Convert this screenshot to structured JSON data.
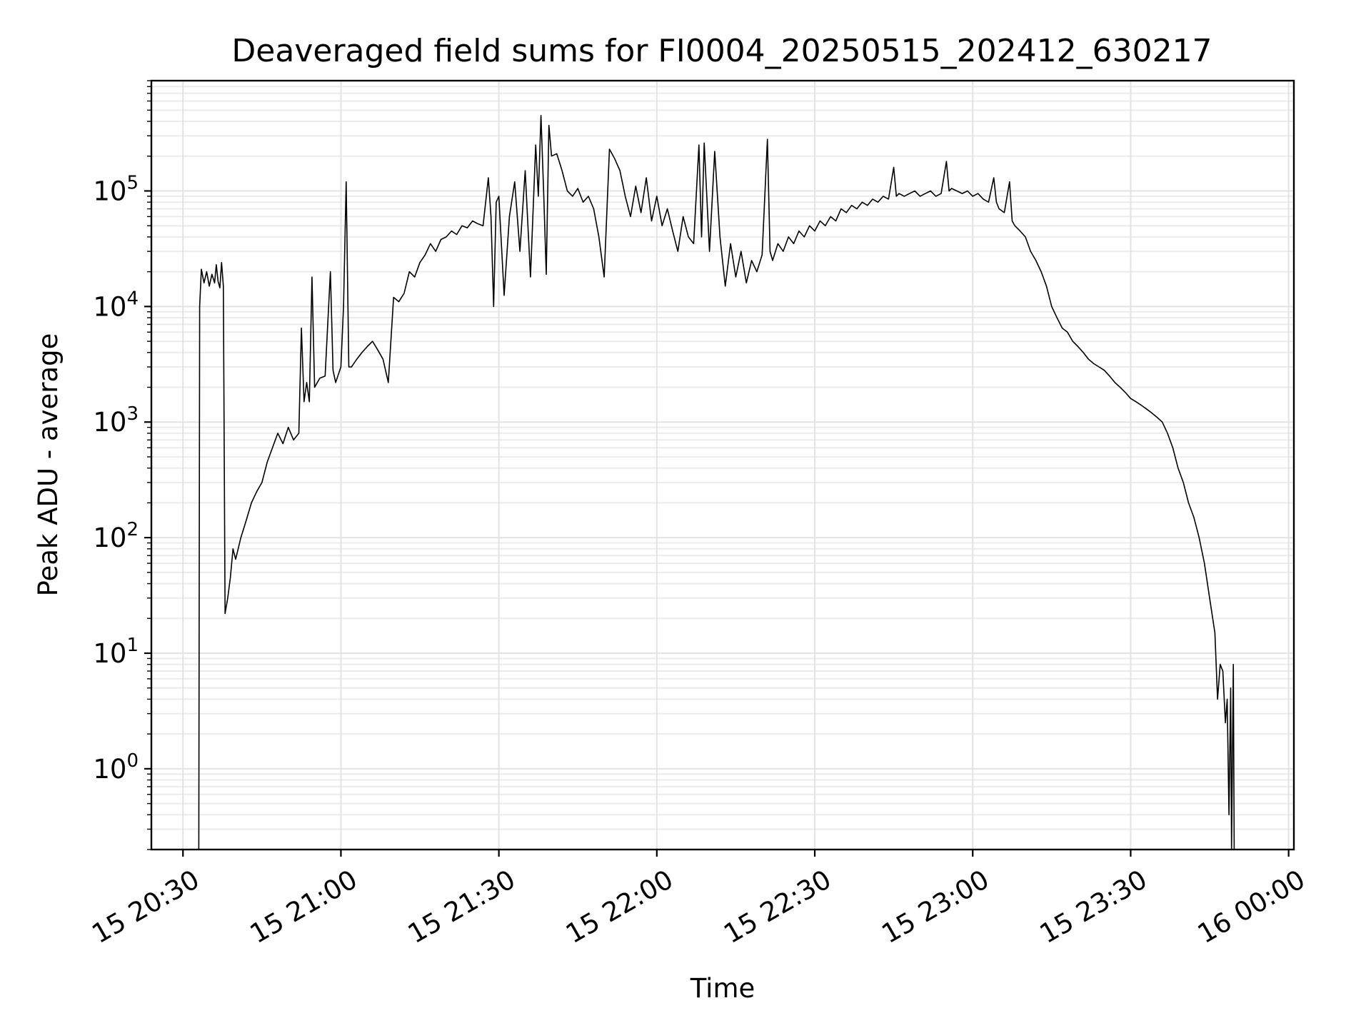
{
  "chart_data": {
    "type": "line",
    "title": "Deaveraged field sums for FI0004_20250515_202412_630217",
    "xlabel": "Time",
    "ylabel": "Peak ADU - average",
    "yscale": "log",
    "ylim": [
      0.2,
      900000
    ],
    "xlim": [
      "2025-05-15 20:24",
      "2025-05-16 00:01"
    ],
    "grid": "both",
    "x_ticks": [
      {
        "t": "2025-05-15 20:30",
        "label": "15 20:30"
      },
      {
        "t": "2025-05-15 21:00",
        "label": "15 21:00"
      },
      {
        "t": "2025-05-15 21:30",
        "label": "15 21:30"
      },
      {
        "t": "2025-05-15 22:00",
        "label": "15 22:00"
      },
      {
        "t": "2025-05-15 22:30",
        "label": "15 22:30"
      },
      {
        "t": "2025-05-15 23:00",
        "label": "15 23:00"
      },
      {
        "t": "2025-05-15 23:30",
        "label": "15 23:30"
      },
      {
        "t": "2025-05-16 00:00",
        "label": "16 00:00"
      }
    ],
    "y_ticks": [
      {
        "value": 1,
        "base": "10",
        "exp": "0"
      },
      {
        "value": 10,
        "base": "10",
        "exp": "1"
      },
      {
        "value": 100,
        "base": "10",
        "exp": "2"
      },
      {
        "value": 1000,
        "base": "10",
        "exp": "3"
      },
      {
        "value": 10000,
        "base": "10",
        "exp": "4"
      },
      {
        "value": 100000,
        "base": "10",
        "exp": "5"
      }
    ],
    "series": [
      {
        "color": "#000000",
        "points": [
          [
            "2025-05-15 20:33",
            0.1
          ],
          [
            "2025-05-15 20:33:10",
            10000
          ],
          [
            "2025-05-15 20:33:30",
            21000
          ],
          [
            "2025-05-15 20:34",
            16000
          ],
          [
            "2025-05-15 20:34:30",
            20000
          ],
          [
            "2025-05-15 20:35",
            15000
          ],
          [
            "2025-05-15 20:35:30",
            19000
          ],
          [
            "2025-05-15 20:36",
            16000
          ],
          [
            "2025-05-15 20:36:20",
            23000
          ],
          [
            "2025-05-15 20:36:40",
            16500
          ],
          [
            "2025-05-15 20:37",
            14500
          ],
          [
            "2025-05-15 20:37:20",
            24000
          ],
          [
            "2025-05-15 20:37:40",
            15000
          ],
          [
            "2025-05-15 20:38",
            22
          ],
          [
            "2025-05-15 20:38:30",
            30
          ],
          [
            "2025-05-15 20:39",
            45
          ],
          [
            "2025-05-15 20:39:30",
            80
          ],
          [
            "2025-05-15 20:40",
            65
          ],
          [
            "2025-05-15 20:41",
            100
          ],
          [
            "2025-05-15 20:42",
            140
          ],
          [
            "2025-05-15 20:43",
            200
          ],
          [
            "2025-05-15 20:44",
            250
          ],
          [
            "2025-05-15 20:45",
            300
          ],
          [
            "2025-05-15 20:46",
            450
          ],
          [
            "2025-05-15 20:47",
            600
          ],
          [
            "2025-05-15 20:48",
            800
          ],
          [
            "2025-05-15 20:49",
            650
          ],
          [
            "2025-05-15 20:50",
            900
          ],
          [
            "2025-05-15 20:51",
            700
          ],
          [
            "2025-05-15 20:52",
            800
          ],
          [
            "2025-05-15 20:52:30",
            6500
          ],
          [
            "2025-05-15 20:53",
            1500
          ],
          [
            "2025-05-15 20:53:30",
            2200
          ],
          [
            "2025-05-15 20:54",
            1500
          ],
          [
            "2025-05-15 20:54:30",
            18000
          ],
          [
            "2025-05-15 20:55",
            2000
          ],
          [
            "2025-05-15 20:56",
            2400
          ],
          [
            "2025-05-15 20:57",
            2500
          ],
          [
            "2025-05-15 20:58",
            20000
          ],
          [
            "2025-05-15 20:58:30",
            2800
          ],
          [
            "2025-05-15 20:59",
            2200
          ],
          [
            "2025-05-15 21:00",
            3000
          ],
          [
            "2025-05-15 21:00:30",
            10000
          ],
          [
            "2025-05-15 21:01",
            120000
          ],
          [
            "2025-05-15 21:01:30",
            3000
          ],
          [
            "2025-05-15 21:02",
            3000
          ],
          [
            "2025-05-15 21:03",
            3500
          ],
          [
            "2025-05-15 21:04",
            4000
          ],
          [
            "2025-05-15 21:05",
            4500
          ],
          [
            "2025-05-15 21:06",
            5000
          ],
          [
            "2025-05-15 21:07",
            4200
          ],
          [
            "2025-05-15 21:08",
            3500
          ],
          [
            "2025-05-15 21:09",
            2200
          ],
          [
            "2025-05-15 21:10",
            12000
          ],
          [
            "2025-05-15 21:11",
            11000
          ],
          [
            "2025-05-15 21:12",
            13000
          ],
          [
            "2025-05-15 21:13",
            20000
          ],
          [
            "2025-05-15 21:14",
            18000
          ],
          [
            "2025-05-15 21:15",
            24000
          ],
          [
            "2025-05-15 21:16",
            28000
          ],
          [
            "2025-05-15 21:17",
            35000
          ],
          [
            "2025-05-15 21:18",
            30000
          ],
          [
            "2025-05-15 21:19",
            38000
          ],
          [
            "2025-05-15 21:20",
            40000
          ],
          [
            "2025-05-15 21:21",
            45000
          ],
          [
            "2025-05-15 21:22",
            42000
          ],
          [
            "2025-05-15 21:23",
            50000
          ],
          [
            "2025-05-15 21:24",
            48000
          ],
          [
            "2025-05-15 21:25",
            55000
          ],
          [
            "2025-05-15 21:26",
            52000
          ],
          [
            "2025-05-15 21:27",
            50000
          ],
          [
            "2025-05-15 21:28",
            130000
          ],
          [
            "2025-05-15 21:28:30",
            60000
          ],
          [
            "2025-05-15 21:29",
            10000
          ],
          [
            "2025-05-15 21:29:30",
            80000
          ],
          [
            "2025-05-15 21:30",
            90000
          ],
          [
            "2025-05-15 21:31",
            12500
          ],
          [
            "2025-05-15 21:32",
            60000
          ],
          [
            "2025-05-15 21:33",
            120000
          ],
          [
            "2025-05-15 21:34",
            30000
          ],
          [
            "2025-05-15 21:35",
            150000
          ],
          [
            "2025-05-15 21:36",
            18000
          ],
          [
            "2025-05-15 21:37",
            250000
          ],
          [
            "2025-05-15 21:37:30",
            90000
          ],
          [
            "2025-05-15 21:38",
            450000
          ],
          [
            "2025-05-15 21:38:30",
            100000
          ],
          [
            "2025-05-15 21:39",
            19000
          ],
          [
            "2025-05-15 21:39:30",
            370000
          ],
          [
            "2025-05-15 21:40",
            200000
          ],
          [
            "2025-05-15 21:41",
            210000
          ],
          [
            "2025-05-15 21:42",
            150000
          ],
          [
            "2025-05-15 21:43",
            100000
          ],
          [
            "2025-05-15 21:44",
            90000
          ],
          [
            "2025-05-15 21:45",
            105000
          ],
          [
            "2025-05-15 21:46",
            80000
          ],
          [
            "2025-05-15 21:47",
            90000
          ],
          [
            "2025-05-15 21:48",
            70000
          ],
          [
            "2025-05-15 21:49",
            40000
          ],
          [
            "2025-05-15 21:50",
            18000
          ],
          [
            "2025-05-15 21:51",
            230000
          ],
          [
            "2025-05-15 21:52",
            190000
          ],
          [
            "2025-05-15 21:53",
            150000
          ],
          [
            "2025-05-15 21:54",
            90000
          ],
          [
            "2025-05-15 21:55",
            60000
          ],
          [
            "2025-05-15 21:56",
            110000
          ],
          [
            "2025-05-15 21:57",
            65000
          ],
          [
            "2025-05-15 21:58",
            130000
          ],
          [
            "2025-05-15 21:59",
            55000
          ],
          [
            "2025-05-15 22:00",
            90000
          ],
          [
            "2025-05-15 22:01",
            50000
          ],
          [
            "2025-05-15 22:02",
            70000
          ],
          [
            "2025-05-15 22:03",
            45000
          ],
          [
            "2025-05-15 22:04",
            30000
          ],
          [
            "2025-05-15 22:05",
            60000
          ],
          [
            "2025-05-15 22:06",
            40000
          ],
          [
            "2025-05-15 22:07",
            35000
          ],
          [
            "2025-05-15 22:08",
            250000
          ],
          [
            "2025-05-15 22:08:30",
            40000
          ],
          [
            "2025-05-15 22:09",
            260000
          ],
          [
            "2025-05-15 22:10",
            30000
          ],
          [
            "2025-05-15 22:11",
            220000
          ],
          [
            "2025-05-15 22:12",
            40000
          ],
          [
            "2025-05-15 22:13",
            15000
          ],
          [
            "2025-05-15 22:14",
            35000
          ],
          [
            "2025-05-15 22:15",
            18000
          ],
          [
            "2025-05-15 22:16",
            30000
          ],
          [
            "2025-05-15 22:17",
            16000
          ],
          [
            "2025-05-15 22:18",
            25000
          ],
          [
            "2025-05-15 22:19",
            20000
          ],
          [
            "2025-05-15 22:20",
            28000
          ],
          [
            "2025-05-15 22:21",
            280000
          ],
          [
            "2025-05-15 22:21:30",
            30000
          ],
          [
            "2025-05-15 22:22",
            25000
          ],
          [
            "2025-05-15 22:23",
            35000
          ],
          [
            "2025-05-15 22:24",
            30000
          ],
          [
            "2025-05-15 22:25",
            40000
          ],
          [
            "2025-05-15 22:26",
            35000
          ],
          [
            "2025-05-15 22:27",
            45000
          ],
          [
            "2025-05-15 22:28",
            40000
          ],
          [
            "2025-05-15 22:29",
            50000
          ],
          [
            "2025-05-15 22:30",
            45000
          ],
          [
            "2025-05-15 22:31",
            55000
          ],
          [
            "2025-05-15 22:32",
            50000
          ],
          [
            "2025-05-15 22:33",
            60000
          ],
          [
            "2025-05-15 22:34",
            55000
          ],
          [
            "2025-05-15 22:35",
            70000
          ],
          [
            "2025-05-15 22:36",
            65000
          ],
          [
            "2025-05-15 22:37",
            75000
          ],
          [
            "2025-05-15 22:38",
            70000
          ],
          [
            "2025-05-15 22:39",
            80000
          ],
          [
            "2025-05-15 22:40",
            75000
          ],
          [
            "2025-05-15 22:41",
            85000
          ],
          [
            "2025-05-15 22:42",
            80000
          ],
          [
            "2025-05-15 22:43",
            90000
          ],
          [
            "2025-05-15 22:44",
            85000
          ],
          [
            "2025-05-15 22:45",
            160000
          ],
          [
            "2025-05-15 22:45:30",
            90000
          ],
          [
            "2025-05-15 22:46",
            95000
          ],
          [
            "2025-05-15 22:47",
            90000
          ],
          [
            "2025-05-15 22:48",
            95000
          ],
          [
            "2025-05-15 22:49",
            100000
          ],
          [
            "2025-05-15 22:50",
            90000
          ],
          [
            "2025-05-15 22:51",
            95000
          ],
          [
            "2025-05-15 22:52",
            100000
          ],
          [
            "2025-05-15 22:53",
            90000
          ],
          [
            "2025-05-15 22:54",
            95000
          ],
          [
            "2025-05-15 22:55",
            180000
          ],
          [
            "2025-05-15 22:55:30",
            100000
          ],
          [
            "2025-05-15 22:56",
            105000
          ],
          [
            "2025-05-15 22:57",
            100000
          ],
          [
            "2025-05-15 22:58",
            95000
          ],
          [
            "2025-05-15 22:59",
            100000
          ],
          [
            "2025-05-15 23:00",
            90000
          ],
          [
            "2025-05-15 23:01",
            95000
          ],
          [
            "2025-05-15 23:02",
            85000
          ],
          [
            "2025-05-15 23:03",
            80000
          ],
          [
            "2025-05-15 23:04",
            130000
          ],
          [
            "2025-05-15 23:04:30",
            80000
          ],
          [
            "2025-05-15 23:05",
            70000
          ],
          [
            "2025-05-15 23:06",
            65000
          ],
          [
            "2025-05-15 23:07",
            120000
          ],
          [
            "2025-05-15 23:07:30",
            55000
          ],
          [
            "2025-05-15 23:08",
            50000
          ],
          [
            "2025-05-15 23:09",
            45000
          ],
          [
            "2025-05-15 23:10",
            40000
          ],
          [
            "2025-05-15 23:11",
            30000
          ],
          [
            "2025-05-15 23:12",
            25000
          ],
          [
            "2025-05-15 23:13",
            20000
          ],
          [
            "2025-05-15 23:14",
            15000
          ],
          [
            "2025-05-15 23:15",
            10000
          ],
          [
            "2025-05-15 23:16",
            8000
          ],
          [
            "2025-05-15 23:17",
            6500
          ],
          [
            "2025-05-15 23:18",
            6000
          ],
          [
            "2025-05-15 23:19",
            5000
          ],
          [
            "2025-05-15 23:20",
            4500
          ],
          [
            "2025-05-15 23:21",
            4000
          ],
          [
            "2025-05-15 23:22",
            3500
          ],
          [
            "2025-05-15 23:23",
            3200
          ],
          [
            "2025-05-15 23:24",
            3000
          ],
          [
            "2025-05-15 23:25",
            2800
          ],
          [
            "2025-05-15 23:26",
            2500
          ],
          [
            "2025-05-15 23:27",
            2200
          ],
          [
            "2025-05-15 23:28",
            2000
          ],
          [
            "2025-05-15 23:29",
            1800
          ],
          [
            "2025-05-15 23:30",
            1600
          ],
          [
            "2025-05-15 23:31",
            1500
          ],
          [
            "2025-05-15 23:32",
            1400
          ],
          [
            "2025-05-15 23:33",
            1300
          ],
          [
            "2025-05-15 23:34",
            1200
          ],
          [
            "2025-05-15 23:35",
            1100
          ],
          [
            "2025-05-15 23:36",
            1000
          ],
          [
            "2025-05-15 23:37",
            800
          ],
          [
            "2025-05-15 23:38",
            600
          ],
          [
            "2025-05-15 23:39",
            400
          ],
          [
            "2025-05-15 23:40",
            300
          ],
          [
            "2025-05-15 23:41",
            200
          ],
          [
            "2025-05-15 23:42",
            150
          ],
          [
            "2025-05-15 23:43",
            100
          ],
          [
            "2025-05-15 23:44",
            60
          ],
          [
            "2025-05-15 23:45",
            30
          ],
          [
            "2025-05-15 23:46",
            15
          ],
          [
            "2025-05-15 23:46:30",
            4
          ],
          [
            "2025-05-15 23:47",
            8
          ],
          [
            "2025-05-15 23:47:30",
            7
          ],
          [
            "2025-05-15 23:48",
            2.5
          ],
          [
            "2025-05-15 23:48:20",
            4
          ],
          [
            "2025-05-15 23:48:40",
            0.4
          ],
          [
            "2025-05-15 23:49",
            5
          ],
          [
            "2025-05-15 23:49:10",
            0.1
          ],
          [
            "2025-05-15 23:49:30",
            8
          ],
          [
            "2025-05-15 23:49:40",
            0.1
          ]
        ]
      }
    ]
  }
}
